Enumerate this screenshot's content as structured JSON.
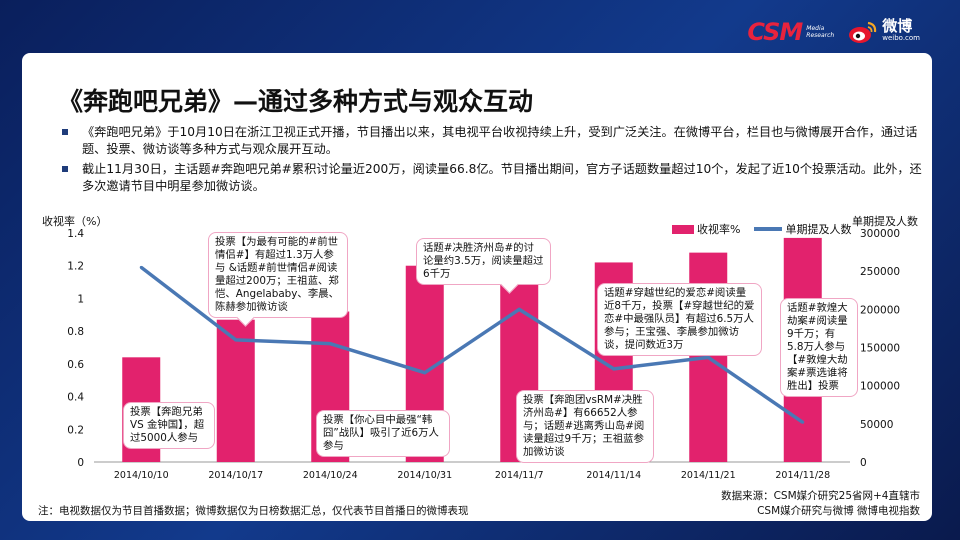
{
  "header": {
    "csm_logo_text": "CSM",
    "csm_logo_sub": [
      "Media",
      "Research"
    ],
    "weibo_cn": "微博",
    "weibo_en": "weibo.com"
  },
  "slide": {
    "title": "《奔跑吧兄弟》—通过多种方式与观众互动",
    "bullets": [
      "《奔跑吧兄弟》于10月10日在浙江卫视正式开播，节目播出以来，其电视平台收视持续上升，受到广泛关注。在微博平台，栏目也与微博展开合作，通过话题、投票、微访谈等多种方式与观众展开互动。",
      "截止11月30日，主话题#奔跑吧兄弟#累积讨论量近200万，阅读量66.8亿。节目播出期间，官方子话题数量超过10个，发起了近10个投票活动。此外，还多次邀请节目中明星参加微访谈。"
    ],
    "footnote": "注：电视数据仅为节目首播数据；微博数据仅为日榜数据汇总，仅代表节目首播日的微博表现",
    "source": [
      "数据来源：CSM媒介研究25省网+4直辖市",
      "CSM媒介研究与微博 微博电视指数"
    ]
  },
  "chart_data": {
    "type": "bar",
    "categories": [
      "2014/10/10",
      "2014/10/17",
      "2014/10/24",
      "2014/10/31",
      "2014/11/7",
      "2014/11/14",
      "2014/11/21",
      "2014/11/28"
    ],
    "series": [
      {
        "name": "收视率%",
        "type": "bar",
        "axis": "left",
        "color": "#e2226d",
        "values": [
          0.64,
          0.87,
          0.92,
          1.2,
          1.1,
          1.22,
          1.28,
          1.37
        ]
      },
      {
        "name": "单期提及人数",
        "type": "line",
        "axis": "right",
        "color": "#4a78b4",
        "values": [
          255000,
          160000,
          155000,
          117000,
          200000,
          122000,
          137000,
          52000
        ]
      }
    ],
    "ylabel": "收视率（%）",
    "y2label": "单期提及人数",
    "ylim": [
      0,
      1.4
    ],
    "y2lim": [
      0,
      300000
    ],
    "yticks": [
      "0",
      "0.2",
      "0.4",
      "0.6",
      "0.8",
      "1",
      "1.2",
      "1.4"
    ],
    "y2ticks": [
      "0",
      "50000",
      "100000",
      "150000",
      "200000",
      "250000",
      "300000"
    ],
    "legend_position": "top-right",
    "grid": false,
    "annotations": [
      "投票【奔跑兄弟 VS 金钟国】，超过5000人参与",
      "投票【为最有可能的#前世情侣#】有超过1.3万人参与 &话题#前世情侣#阅读量超过200万；王祖蓝、郑恺、Angelababy、李晨、陈赫参加微访谈",
      "投票【你心目中最强“韩囧”战队】吸引了近6万人参与",
      "话题#决胜济州岛#的讨论量约3.5万，阅读量超过6千万",
      "投票【奔跑团vsRM#决胜济州岛#】有66652人参与；话题#逃离秀山岛#阅读量超过9千万；王祖蓝参加微访谈",
      "话题#穿越世纪的爱恋#阅读量近8千万，投票【#穿越世纪的爱恋#中最强队员】有超过6.5万人参与；王宝强、李晨参加微访谈，提问数近3万",
      "话题#敦煌大劫案#阅读量9千万；有5.8万人参与【#敦煌大劫案#票选谁将胜出】投票"
    ]
  }
}
